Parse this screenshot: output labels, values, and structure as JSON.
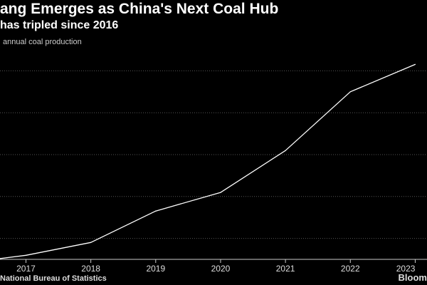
{
  "header": {
    "title": "ang Emerges as China's Next Coal Hub",
    "subtitle": "has tripled since 2016",
    "ylabel_fragment": "annual coal production"
  },
  "footer": {
    "source": "National Bureau of Statistics",
    "brand": "Bloom"
  },
  "colors": {
    "background": "#000000",
    "line": "#ffffff",
    "grid": "#555555"
  },
  "chart_data": {
    "type": "line",
    "title": "ang Emerges as China's Next Coal Hub",
    "subtitle": "has tripled since 2016",
    "ylabel": "annual coal production",
    "xlabel": "",
    "x": [
      2016.6,
      2017,
      2018,
      2019,
      2020,
      2021,
      2022,
      2023
    ],
    "xticks": [
      2017,
      2018,
      2019,
      2020,
      2021,
      2022,
      2023
    ],
    "xtick_labels": [
      "2017",
      "2018",
      "2019",
      "2020",
      "2021",
      "2022",
      "2023"
    ],
    "series": [
      {
        "name": "annual coal production",
        "values": [
          0.1,
          0.5,
          2.1,
          6.0,
          8.3,
          13.5,
          20.8,
          24.2
        ]
      }
    ],
    "xlim": [
      2016.6,
      2023.05
    ],
    "ylim": [
      0,
      26
    ],
    "gridlines": [
      2.6,
      7.8,
      13.0,
      18.2,
      23.4
    ],
    "grid": true,
    "legend": "none"
  }
}
